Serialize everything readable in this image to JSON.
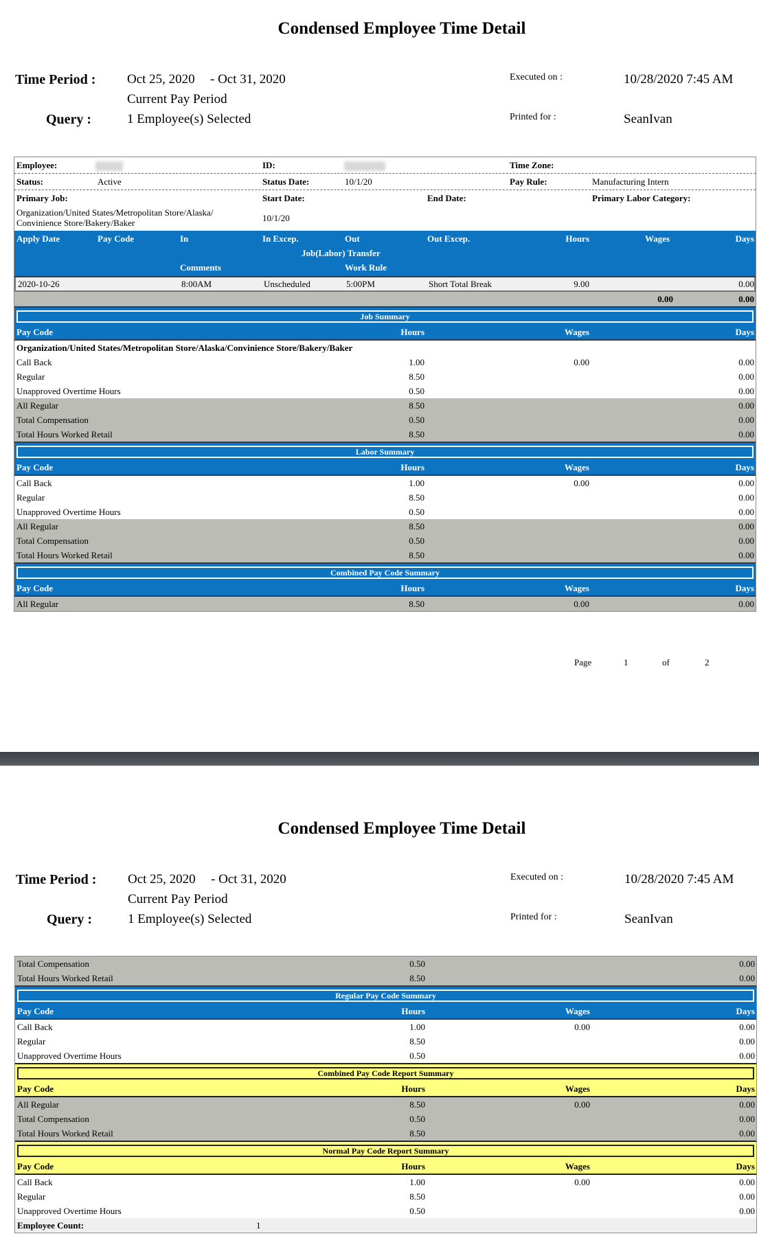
{
  "report": {
    "title": "Condensed Employee Time Detail",
    "time_period_label": "Time Period :",
    "period_start": "Oct 25, 2020",
    "period_end": "- Oct 31, 2020",
    "period_name": "Current Pay Period",
    "query_label": "Query :",
    "query_value": "1 Employee(s) Selected",
    "executed_label": "Executed on :",
    "executed_value": "10/28/2020 7:45 AM",
    "printed_label": "Printed for :",
    "printed_value": "SeanIvan"
  },
  "employee": {
    "employee_label": "Employee:",
    "id_label": "ID:",
    "time_zone_label": "Time Zone:",
    "status_label": "Status:",
    "status_value": "Active",
    "status_date_label": "Status Date:",
    "status_date_value": "10/1/20",
    "pay_rule_label": "Pay Rule:",
    "pay_rule_value": "Manufacturing Intern",
    "primary_job_label": "Primary Job:",
    "start_date_label": "Start Date:",
    "end_date_label": "End Date:",
    "primary_labor_label": "Primary Labor Category:",
    "primary_job_line1": "Organization/United States/Metropolitan Store/Alaska/",
    "primary_job_line2": "Convinience Store/Bakery/Baker",
    "start_date_value": "10/1/20"
  },
  "detail": {
    "headers": {
      "apply_date": "Apply Date",
      "pay_code": "Pay Code",
      "in": "In",
      "in_excep": "In Excep.",
      "out": "Out",
      "out_excep": "Out Excep.",
      "hours": "Hours",
      "wages": "Wages",
      "days": "Days",
      "transfer": "Job(Labor) Transfer",
      "comments": "Comments",
      "work_rule": "Work Rule"
    },
    "row": {
      "apply_date": "2020-10-26",
      "in": "8:00AM",
      "in_excep": "Unscheduled",
      "out": "5:00PM",
      "out_excep": "Short Total Break",
      "hours": "9.00",
      "days": "0.00"
    },
    "totals": {
      "wages": "0.00",
      "days": "0.00"
    }
  },
  "columns": {
    "pay_code": "Pay Code",
    "hours": "Hours",
    "wages": "Wages",
    "days": "Days"
  },
  "page1": {
    "sections": [
      {
        "title": "Job Summary",
        "theme": "blue",
        "group": "Organization/United States/Metropolitan Store/Alaska/Convinience Store/Bakery/Baker",
        "rows": [
          {
            "code": "Call Back",
            "hours": "1.00",
            "wages": "0.00",
            "days": "0.00",
            "shaded": false
          },
          {
            "code": "Regular",
            "hours": "8.50",
            "wages": "",
            "days": "0.00",
            "shaded": false
          },
          {
            "code": "Unapproved Overtime Hours",
            "hours": "0.50",
            "wages": "",
            "days": "0.00",
            "shaded": false
          },
          {
            "code": "All Regular",
            "hours": "8.50",
            "wages": "",
            "days": "0.00",
            "shaded": true
          },
          {
            "code": "Total Compensation",
            "hours": "0.50",
            "wages": "",
            "days": "0.00",
            "shaded": true
          },
          {
            "code": "Total Hours Worked Retail",
            "hours": "8.50",
            "wages": "",
            "days": "0.00",
            "shaded": true
          }
        ]
      },
      {
        "title": "Labor Summary",
        "theme": "blue",
        "rows": [
          {
            "code": "Call Back",
            "hours": "1.00",
            "wages": "0.00",
            "days": "0.00",
            "shaded": false
          },
          {
            "code": "Regular",
            "hours": "8.50",
            "wages": "",
            "days": "0.00",
            "shaded": false
          },
          {
            "code": "Unapproved Overtime Hours",
            "hours": "0.50",
            "wages": "",
            "days": "0.00",
            "shaded": false
          },
          {
            "code": "All Regular",
            "hours": "8.50",
            "wages": "",
            "days": "0.00",
            "shaded": true
          },
          {
            "code": "Total Compensation",
            "hours": "0.50",
            "wages": "",
            "days": "0.00",
            "shaded": true
          },
          {
            "code": "Total Hours Worked Retail",
            "hours": "8.50",
            "wages": "",
            "days": "0.00",
            "shaded": true
          }
        ]
      },
      {
        "title": "Combined Pay Code Summary",
        "theme": "blue",
        "rows": [
          {
            "code": "All Regular",
            "hours": "8.50",
            "wages": "0.00",
            "days": "0.00",
            "shaded": true
          }
        ]
      }
    ],
    "footer": {
      "page_label": "Page",
      "page": "1",
      "of_label": "of",
      "total": "2"
    }
  },
  "page2": {
    "sections": [
      {
        "title": "",
        "theme": "blue",
        "rows": [
          {
            "code": "Total Compensation",
            "hours": "0.50",
            "wages": "",
            "days": "0.00",
            "shaded": true
          },
          {
            "code": "Total Hours Worked Retail",
            "hours": "8.50",
            "wages": "",
            "days": "0.00",
            "shaded": true
          }
        ]
      },
      {
        "title": "Regular Pay Code Summary",
        "theme": "blue",
        "rows": [
          {
            "code": "Call Back",
            "hours": "1.00",
            "wages": "0.00",
            "days": "0.00",
            "shaded": false
          },
          {
            "code": "Regular",
            "hours": "8.50",
            "wages": "",
            "days": "0.00",
            "shaded": false
          },
          {
            "code": "Unapproved Overtime Hours",
            "hours": "0.50",
            "wages": "",
            "days": "0.00",
            "shaded": false
          }
        ]
      },
      {
        "title": "Combined Pay Code Report Summary",
        "theme": "yellow",
        "rows": [
          {
            "code": "All Regular",
            "hours": "8.50",
            "wages": "0.00",
            "days": "0.00",
            "shaded": true
          },
          {
            "code": "Total Compensation",
            "hours": "0.50",
            "wages": "",
            "days": "0.00",
            "shaded": true
          },
          {
            "code": "Total Hours Worked Retail",
            "hours": "8.50",
            "wages": "",
            "days": "0.00",
            "shaded": true
          }
        ]
      },
      {
        "title": "Normal Pay Code Report Summary",
        "theme": "yellow",
        "rows": [
          {
            "code": "Call Back",
            "hours": "1.00",
            "wages": "0.00",
            "days": "0.00",
            "shaded": false
          },
          {
            "code": "Regular",
            "hours": "8.50",
            "wages": "",
            "days": "0.00",
            "shaded": false
          },
          {
            "code": "Unapproved Overtime Hours",
            "hours": "0.50",
            "wages": "",
            "days": "0.00",
            "shaded": false
          }
        ]
      }
    ],
    "employee_count_label": "Employee Count:",
    "employee_count": "1"
  },
  "colors": {
    "blue_header": "#0d74c1",
    "yellow_header": "#ffff80",
    "shaded_row": "#bcbcb6"
  }
}
